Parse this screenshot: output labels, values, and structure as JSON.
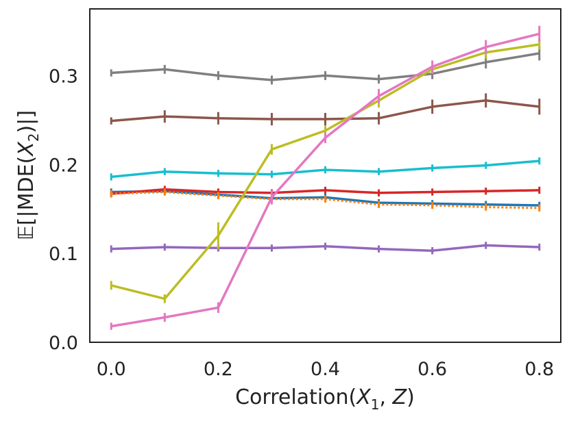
{
  "chart_data": {
    "type": "line",
    "title": "",
    "xlabel": "Correlation(X₁, Z)",
    "xlabel_parts": {
      "main": "Correlation(",
      "var1": "X",
      "sub1": "1",
      "sep": ", ",
      "var2": "Z",
      "close": ")"
    },
    "ylabel": "𝔼[|MDE(X₂)|]",
    "ylabel_parts": {
      "bb": "𝔼",
      "open": "[|MDE(",
      "var": "X",
      "sub": "2",
      "close": ")|]"
    },
    "xlim": [
      -0.04,
      0.84
    ],
    "ylim": [
      0.0,
      0.375
    ],
    "x": [
      0.0,
      0.1,
      0.2,
      0.3,
      0.4,
      0.5,
      0.6,
      0.7,
      0.8
    ],
    "x_ticks": [
      "0.0",
      "0.2",
      "0.4",
      "0.6",
      "0.8"
    ],
    "x_tick_values": [
      0.0,
      0.2,
      0.4,
      0.6,
      0.8
    ],
    "y_ticks": [
      "0.0",
      "0.1",
      "0.2",
      "0.3"
    ],
    "y_tick_values": [
      0.0,
      0.1,
      0.2,
      0.3
    ],
    "grid": false,
    "series": [
      {
        "name": "blue",
        "color": "#1f77b4",
        "values": [
          0.169,
          0.17,
          0.166,
          0.162,
          0.163,
          0.157,
          0.156,
          0.155,
          0.154
        ],
        "err": [
          0.003,
          0.003,
          0.003,
          0.003,
          0.003,
          0.003,
          0.003,
          0.003,
          0.003
        ],
        "dashed": false
      },
      {
        "name": "red",
        "color": "#d62728",
        "values": [
          0.167,
          0.172,
          0.169,
          0.168,
          0.171,
          0.168,
          0.169,
          0.17,
          0.171
        ],
        "err": [
          0.003,
          0.003,
          0.003,
          0.003,
          0.003,
          0.003,
          0.003,
          0.003,
          0.003
        ],
        "dashed": false
      },
      {
        "name": "orange",
        "color": "#ff7f0e",
        "values": [
          0.167,
          0.169,
          0.165,
          0.161,
          0.161,
          0.155,
          0.154,
          0.152,
          0.151
        ],
        "err": [
          0.003,
          0.003,
          0.003,
          0.003,
          0.003,
          0.003,
          0.004,
          0.004,
          0.004
        ],
        "dashed": true
      },
      {
        "name": "purple",
        "color": "#9467bd",
        "values": [
          0.105,
          0.107,
          0.106,
          0.106,
          0.108,
          0.105,
          0.103,
          0.109,
          0.107
        ],
        "err": [
          0.003,
          0.004,
          0.003,
          0.004,
          0.004,
          0.003,
          0.003,
          0.004,
          0.004
        ],
        "dashed": false
      },
      {
        "name": "cyan",
        "color": "#17becf",
        "values": [
          0.186,
          0.192,
          0.19,
          0.189,
          0.194,
          0.192,
          0.196,
          0.199,
          0.204
        ],
        "err": [
          0.003,
          0.004,
          0.003,
          0.004,
          0.004,
          0.003,
          0.004,
          0.004,
          0.004
        ],
        "dashed": false
      },
      {
        "name": "brown",
        "color": "#8c564b",
        "values": [
          0.249,
          0.254,
          0.252,
          0.251,
          0.251,
          0.252,
          0.265,
          0.272,
          0.265
        ],
        "err": [
          0.004,
          0.007,
          0.007,
          0.007,
          0.007,
          0.007,
          0.008,
          0.008,
          0.009
        ],
        "dashed": false
      },
      {
        "name": "gray",
        "color": "#7f7f7f",
        "values": [
          0.303,
          0.307,
          0.3,
          0.295,
          0.3,
          0.296,
          0.302,
          0.315,
          0.325
        ],
        "err": [
          0.004,
          0.005,
          0.005,
          0.005,
          0.005,
          0.005,
          0.006,
          0.007,
          0.008
        ],
        "dashed": false
      },
      {
        "name": "olive",
        "color": "#bcbd22",
        "values": [
          0.064,
          0.049,
          0.12,
          0.217,
          0.238,
          0.272,
          0.307,
          0.326,
          0.335
        ],
        "err": [
          0.005,
          0.005,
          0.015,
          0.006,
          0.006,
          0.008,
          0.005,
          0.007,
          0.006
        ],
        "dashed": false
      },
      {
        "name": "pink",
        "color": "#e377c2",
        "values": [
          0.018,
          0.028,
          0.039,
          0.163,
          0.23,
          0.277,
          0.31,
          0.332,
          0.347
        ],
        "err": [
          0.002,
          0.005,
          0.006,
          0.008,
          0.006,
          0.008,
          0.007,
          0.008,
          0.009
        ],
        "dashed": false
      }
    ]
  }
}
